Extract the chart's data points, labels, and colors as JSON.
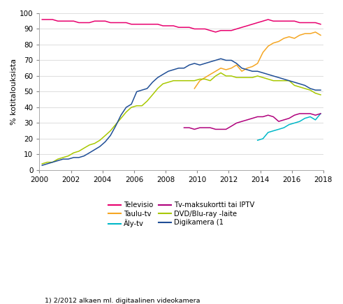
{
  "title": "",
  "ylabel": "% kotitalouksista",
  "xlabel": "",
  "xlim": [
    2000,
    2018
  ],
  "ylim": [
    0,
    100
  ],
  "yticks": [
    0,
    10,
    20,
    30,
    40,
    50,
    60,
    70,
    80,
    90,
    100
  ],
  "xticks": [
    2000,
    2002,
    2004,
    2006,
    2008,
    2010,
    2012,
    2014,
    2016,
    2018
  ],
  "footnote": "1) 2/2012 alkaen ml. digitaalinen videokamera",
  "series": {
    "Televisio": {
      "color": "#e8006e",
      "x": [
        2000.17,
        2000.5,
        2000.83,
        2001.17,
        2001.5,
        2001.83,
        2002.17,
        2002.5,
        2002.83,
        2003.17,
        2003.5,
        2003.83,
        2004.17,
        2004.5,
        2004.83,
        2005.17,
        2005.5,
        2005.83,
        2006.17,
        2006.5,
        2006.83,
        2007.17,
        2007.5,
        2007.83,
        2008.17,
        2008.5,
        2008.83,
        2009.17,
        2009.5,
        2009.83,
        2010.17,
        2010.5,
        2010.83,
        2011.17,
        2011.5,
        2011.83,
        2012.17,
        2012.5,
        2012.83,
        2013.17,
        2013.5,
        2013.83,
        2014.17,
        2014.5,
        2014.83,
        2015.17,
        2015.5,
        2015.83,
        2016.17,
        2016.5,
        2016.83,
        2017.17,
        2017.5,
        2017.83
      ],
      "y": [
        96,
        96,
        96,
        95,
        95,
        95,
        95,
        94,
        94,
        94,
        95,
        95,
        95,
        94,
        94,
        94,
        94,
        93,
        93,
        93,
        93,
        93,
        93,
        92,
        92,
        92,
        91,
        91,
        91,
        90,
        90,
        90,
        89,
        88,
        89,
        89,
        89,
        90,
        91,
        92,
        93,
        94,
        95,
        96,
        95,
        95,
        95,
        95,
        95,
        94,
        94,
        94,
        94,
        93
      ]
    },
    "Taulu-tv": {
      "color": "#f5a623",
      "x": [
        2009.83,
        2010.17,
        2010.5,
        2010.83,
        2011.17,
        2011.5,
        2011.83,
        2012.17,
        2012.5,
        2012.83,
        2013.17,
        2013.5,
        2013.83,
        2014.17,
        2014.5,
        2014.83,
        2015.17,
        2015.5,
        2015.83,
        2016.17,
        2016.5,
        2016.83,
        2017.17,
        2017.5,
        2017.83
      ],
      "y": [
        52,
        57,
        59,
        61,
        63,
        65,
        64,
        65,
        67,
        63,
        65,
        66,
        68,
        75,
        79,
        81,
        82,
        84,
        85,
        84,
        86,
        87,
        87,
        88,
        86
      ]
    },
    "Äly-tv": {
      "color": "#00b8c8",
      "x": [
        2013.83,
        2014.17,
        2014.5,
        2014.83,
        2015.17,
        2015.5,
        2015.83,
        2016.17,
        2016.5,
        2016.83,
        2017.17,
        2017.5,
        2017.83
      ],
      "y": [
        19,
        20,
        24,
        25,
        26,
        27,
        29,
        30,
        31,
        33,
        34,
        32,
        36
      ]
    },
    "Tv-maksukortti tai IPTV": {
      "color": "#b0007c",
      "x": [
        2009.17,
        2009.5,
        2009.83,
        2010.17,
        2010.5,
        2010.83,
        2011.17,
        2011.5,
        2011.83,
        2012.17,
        2012.5,
        2012.83,
        2013.17,
        2013.5,
        2013.83,
        2014.17,
        2014.5,
        2014.83,
        2015.17,
        2015.5,
        2015.83,
        2016.17,
        2016.5,
        2016.83,
        2017.17,
        2017.5,
        2017.83
      ],
      "y": [
        27,
        27,
        26,
        27,
        27,
        27,
        26,
        26,
        26,
        28,
        30,
        31,
        32,
        33,
        34,
        34,
        35,
        34,
        31,
        32,
        33,
        35,
        36,
        36,
        36,
        35,
        36
      ]
    },
    "DVD/Blu-ray -laite": {
      "color": "#a8c800",
      "x": [
        2000.17,
        2000.5,
        2000.83,
        2001.17,
        2001.5,
        2001.83,
        2002.17,
        2002.5,
        2002.83,
        2003.17,
        2003.5,
        2003.83,
        2004.17,
        2004.5,
        2004.83,
        2005.17,
        2005.5,
        2005.83,
        2006.17,
        2006.5,
        2006.83,
        2007.17,
        2007.5,
        2007.83,
        2008.17,
        2008.5,
        2008.83,
        2009.17,
        2009.5,
        2009.83,
        2010.17,
        2010.5,
        2010.83,
        2011.17,
        2011.5,
        2011.83,
        2012.17,
        2012.5,
        2012.83,
        2013.17,
        2013.5,
        2013.83,
        2014.17,
        2014.5,
        2014.83,
        2015.17,
        2015.5,
        2015.83,
        2016.17,
        2016.5,
        2016.83,
        2017.17,
        2017.5,
        2017.83
      ],
      "y": [
        4,
        5,
        5,
        7,
        8,
        9,
        11,
        12,
        14,
        16,
        17,
        19,
        22,
        25,
        29,
        33,
        37,
        40,
        41,
        41,
        44,
        48,
        52,
        55,
        56,
        57,
        57,
        57,
        57,
        57,
        58,
        58,
        57,
        60,
        62,
        60,
        60,
        59,
        59,
        59,
        59,
        60,
        59,
        58,
        57,
        57,
        57,
        57,
        54,
        53,
        52,
        51,
        49,
        48
      ]
    },
    "Digikamera (1": {
      "color": "#1f4e96",
      "x": [
        2000.17,
        2000.5,
        2000.83,
        2001.17,
        2001.5,
        2001.83,
        2002.17,
        2002.5,
        2002.83,
        2003.17,
        2003.5,
        2003.83,
        2004.17,
        2004.5,
        2004.83,
        2005.17,
        2005.5,
        2005.83,
        2006.17,
        2006.5,
        2006.83,
        2007.17,
        2007.5,
        2007.83,
        2008.17,
        2008.5,
        2008.83,
        2009.17,
        2009.5,
        2009.83,
        2010.17,
        2010.5,
        2010.83,
        2011.17,
        2011.5,
        2011.83,
        2012.17,
        2012.5,
        2012.83,
        2013.17,
        2013.5,
        2013.83,
        2014.17,
        2014.5,
        2014.83,
        2015.17,
        2015.5,
        2015.83,
        2016.17,
        2016.5,
        2016.83,
        2017.17,
        2017.5,
        2017.83
      ],
      "y": [
        3,
        4,
        5,
        6,
        7,
        7,
        8,
        8,
        9,
        11,
        13,
        15,
        18,
        22,
        28,
        35,
        40,
        42,
        50,
        51,
        52,
        56,
        59,
        61,
        63,
        64,
        65,
        65,
        67,
        68,
        67,
        68,
        69,
        70,
        71,
        70,
        70,
        68,
        65,
        64,
        63,
        63,
        62,
        61,
        60,
        59,
        58,
        57,
        56,
        55,
        54,
        52,
        51,
        51
      ]
    }
  },
  "legend_order": [
    "Televisio",
    "Taulu-tv",
    "Äly-tv",
    "Tv-maksukortti tai IPTV",
    "DVD/Blu-ray -laite",
    "Digikamera (1"
  ],
  "background_color": "#ffffff",
  "grid_color": "#d0d0d0"
}
